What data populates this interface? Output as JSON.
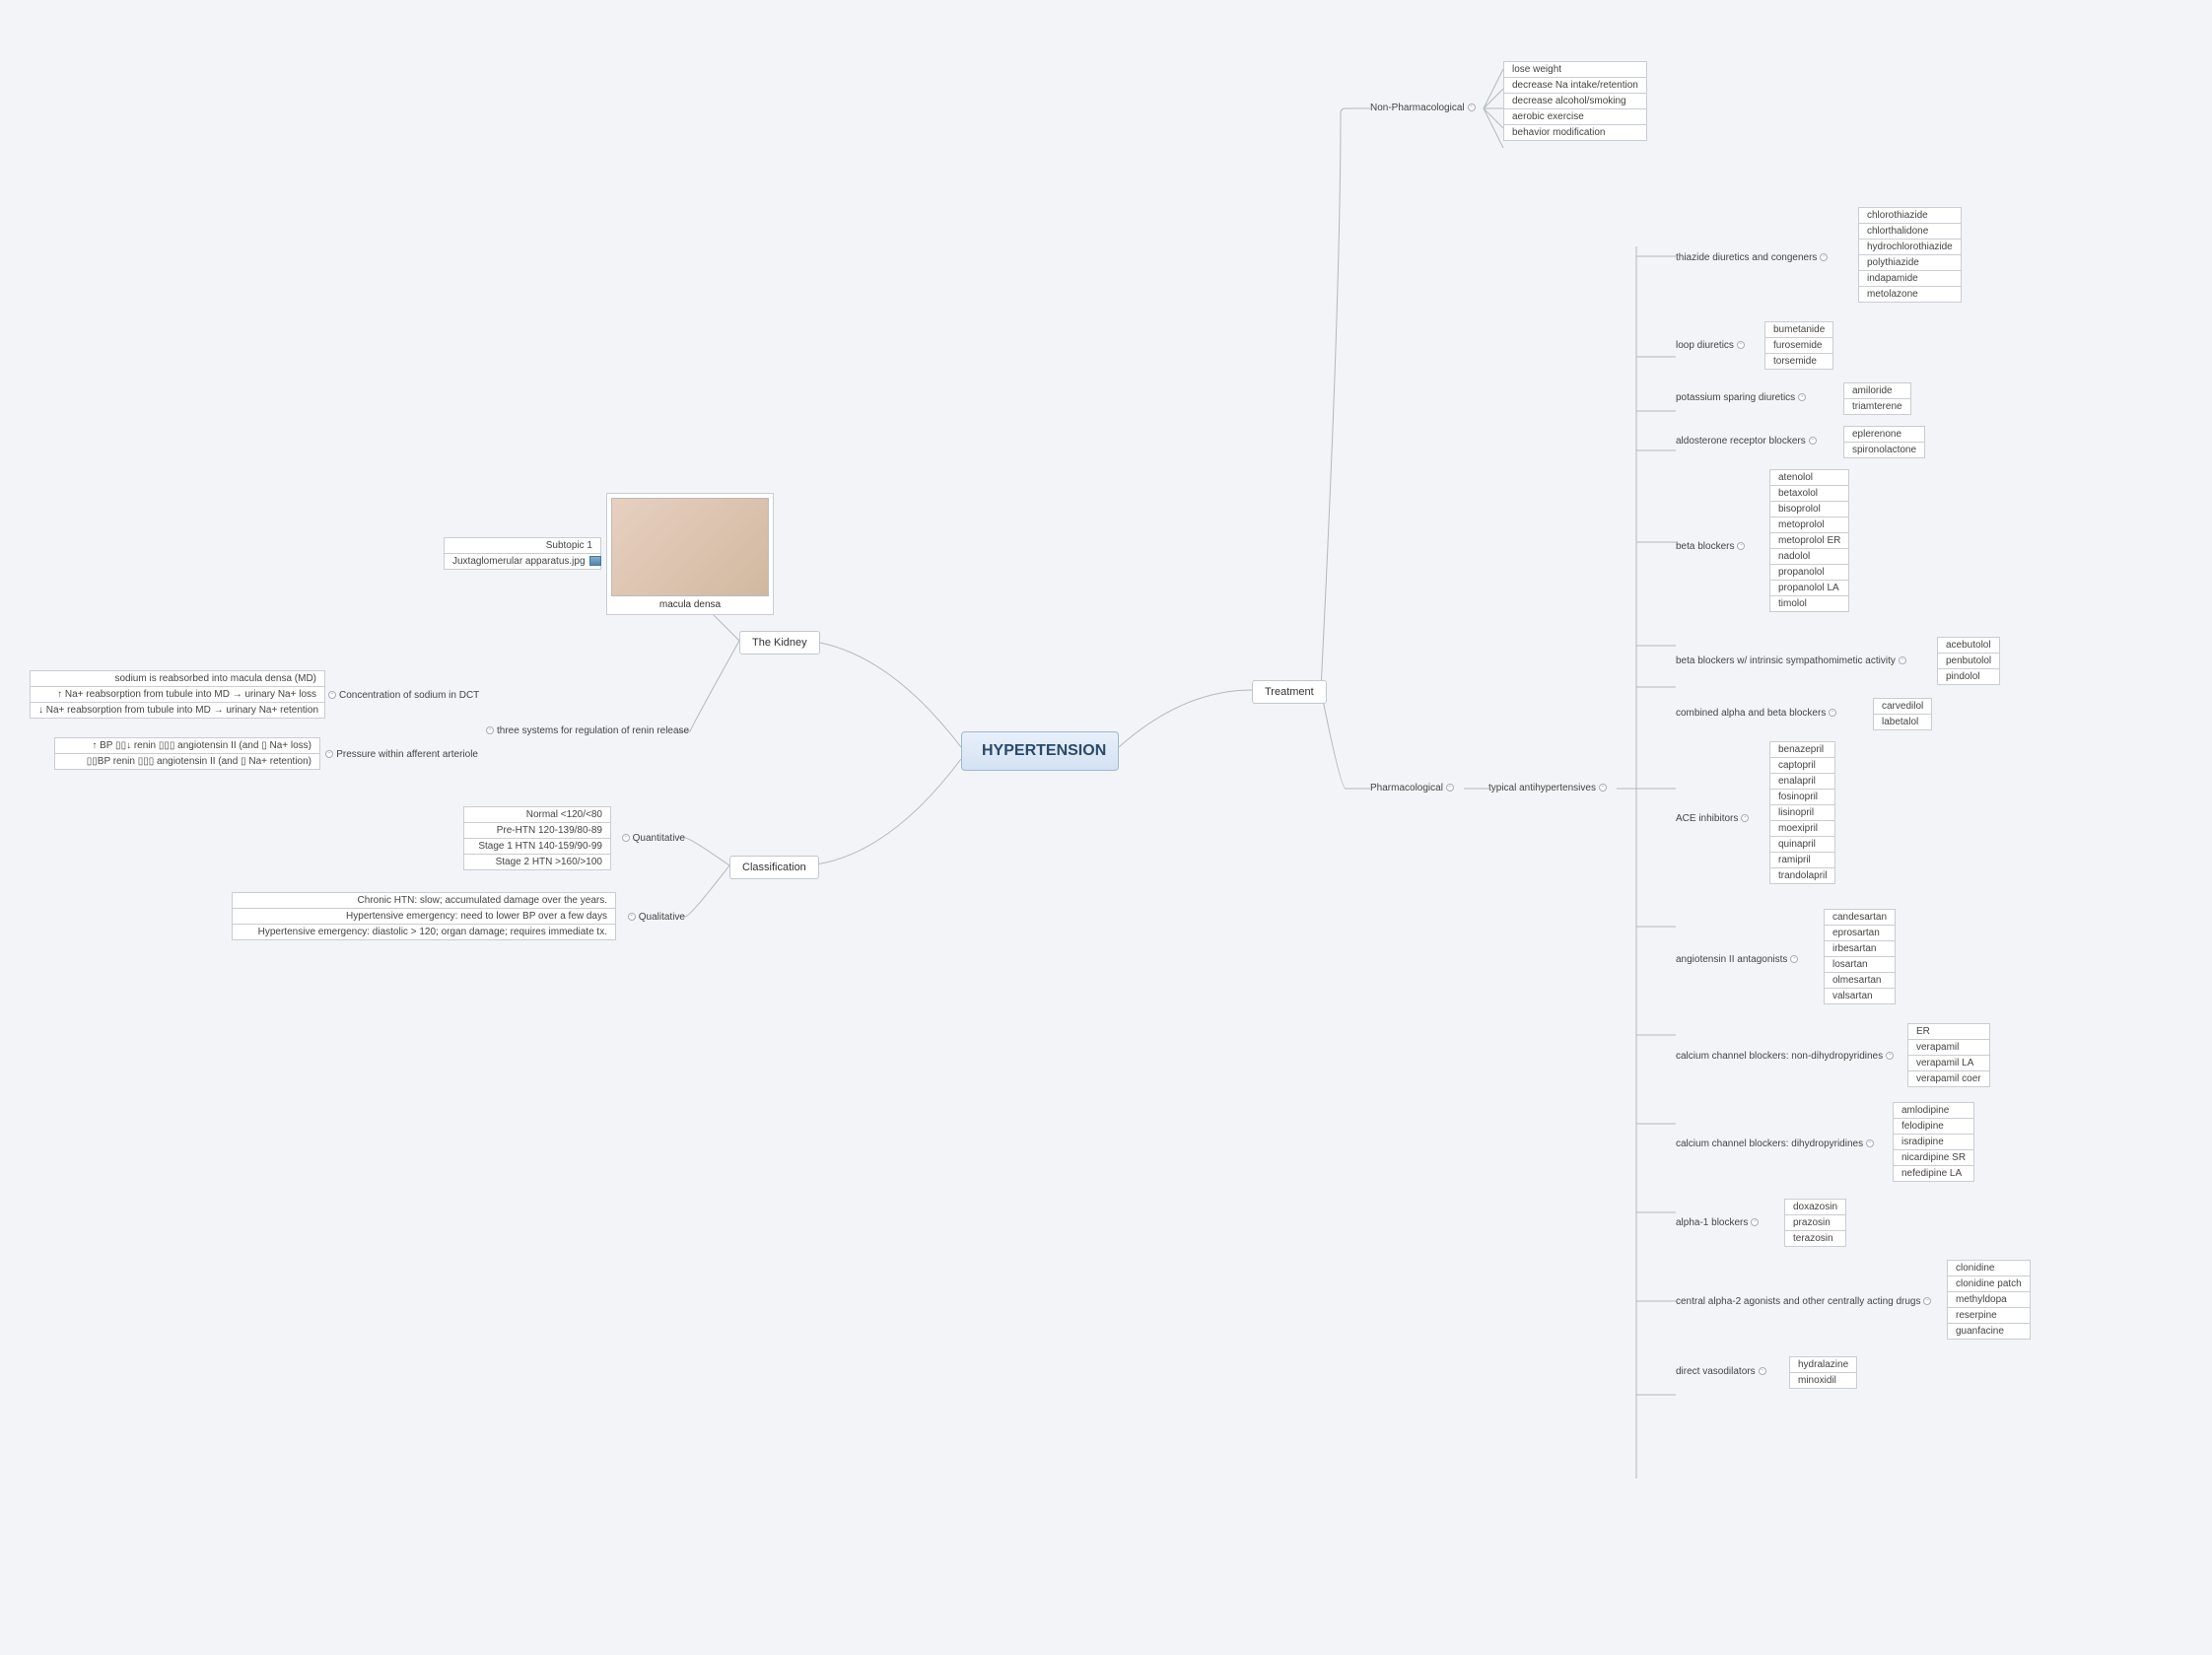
{
  "root": {
    "label": "HYPERTENSION"
  },
  "colors": {
    "background": "#f3f4f7",
    "root_bg_top": "#e8f0fa",
    "root_bg_bottom": "#d4e2f2",
    "root_border": "#9bb8d8",
    "node_bg": "#ffffff",
    "node_border": "#c0c8d0",
    "connector": "#b0b8c0",
    "text": "#333333"
  },
  "fonts": {
    "base_size": 10,
    "root_size": 16,
    "branch_size": 11
  },
  "left": {
    "kidney": {
      "label": "The Kidney",
      "macula": {
        "caption": "macula densa",
        "group": [
          "Subtopic 1",
          "Juxtaglomerular apparatus.jpg"
        ]
      },
      "renin": {
        "label": "three systems for regulation of renin release",
        "dct": {
          "label": "Concentration of sodium in DCT",
          "items": [
            "sodium is reabsorbed into macula densa (MD)",
            "↑ Na+ reabsorption from tubule into MD →  urinary Na+ loss",
            "↓ Na+ reabsorption from tubule into MD  →   urinary Na+ retention"
          ]
        },
        "pressure": {
          "label": "Pressure within afferent arteriole",
          "items": [
            "↑ BP  ▯▯↓ renin ▯▯▯ angiotensin II (and ▯ Na+ loss)",
            "▯▯BP  renin ▯▯▯ angiotensin II (and ▯ Na+ retention)"
          ]
        }
      }
    },
    "classification": {
      "label": "Classification",
      "quant": {
        "label": "Quantitative",
        "items": [
          "Normal <120/<80",
          "Pre-HTN 120-139/80-89",
          "Stage 1 HTN 140-159/90-99",
          "Stage 2 HTN >160/>100"
        ]
      },
      "qual": {
        "label": "Qualitative",
        "items": [
          "Chronic HTN: slow; accumulated damage over the years.",
          "Hypertensive emergency: need to lower BP over a few days",
          "Hypertensive emergency: diastolic > 120; organ damage; requires immediate tx."
        ]
      }
    }
  },
  "right": {
    "treatment": {
      "label": "Treatment",
      "nonpharm": {
        "label": "Non-Pharmacological",
        "items": [
          "lose weight",
          "decrease Na intake/retention",
          "decrease alcohol/smoking",
          "aerobic exercise",
          "behavior modification"
        ]
      },
      "pharm": {
        "label": "Pharmacological",
        "typical_label": "typical antihypertensives",
        "groups": {
          "thiazide": {
            "label": "thiazide diuretics and congeners",
            "items": [
              "chlorothiazide",
              "chlorthalidone",
              "hydrochlorothiazide",
              "polythiazide",
              "indapamide",
              "metolazone"
            ]
          },
          "loop": {
            "label": "loop diuretics",
            "items": [
              "bumetanide",
              "furosemide",
              "torsemide"
            ]
          },
          "ksparing": {
            "label": "potassium sparing diuretics",
            "items": [
              "amiloride",
              "triamterene"
            ]
          },
          "aldo": {
            "label": "aldosterone receptor blockers",
            "items": [
              "eplerenone",
              "spironolactone"
            ]
          },
          "beta": {
            "label": "beta blockers",
            "items": [
              "atenolol",
              "betaxolol",
              "bisoprolol",
              "metoprolol",
              "metoprolol ER",
              "nadolol",
              "propanolol",
              "propanolol LA",
              "timolol"
            ]
          },
          "betaisa": {
            "label": "beta blockers w/ intrinsic sympathomimetic activity",
            "items": [
              "acebutolol",
              "penbutolol",
              "pindolol"
            ]
          },
          "combab": {
            "label": "combined alpha and beta blockers",
            "items": [
              "carvedilol",
              "labetalol"
            ]
          },
          "ace": {
            "label": "ACE inhibitors",
            "items": [
              "benazepril",
              "captopril",
              "enalapril",
              "fosinopril",
              "lisinopril",
              "moexipril",
              "quinapril",
              "ramipril",
              "trandolapril"
            ]
          },
          "arb": {
            "label": "angiotensin II antagonists",
            "items": [
              "candesartan",
              "eprosartan",
              "irbesartan",
              "losartan",
              "olmesartan",
              "valsartan"
            ]
          },
          "ccbnon": {
            "label": "calcium channel blockers: non-dihydropyridines",
            "items": [
              "ER",
              "verapamil",
              "verapamil LA",
              "verapamil coer"
            ]
          },
          "ccbdih": {
            "label": "calcium channel blockers: dihydropyridines",
            "items": [
              "amlodipine",
              "felodipine",
              "isradipine",
              "nicardipine SR",
              "nefedipine LA"
            ]
          },
          "alpha1": {
            "label": "alpha-1 blockers",
            "items": [
              "doxazosin",
              "prazosin",
              "terazosin"
            ]
          },
          "central": {
            "label": "central alpha-2 agonists and other centrally acting drugs",
            "items": [
              "clonidine",
              "clonidine patch",
              "methyldopa",
              "reserpine",
              "guanfacine"
            ]
          },
          "vasod": {
            "label": "direct vasodilators",
            "items": [
              "hydralazine",
              "minoxidil"
            ]
          }
        }
      }
    }
  }
}
